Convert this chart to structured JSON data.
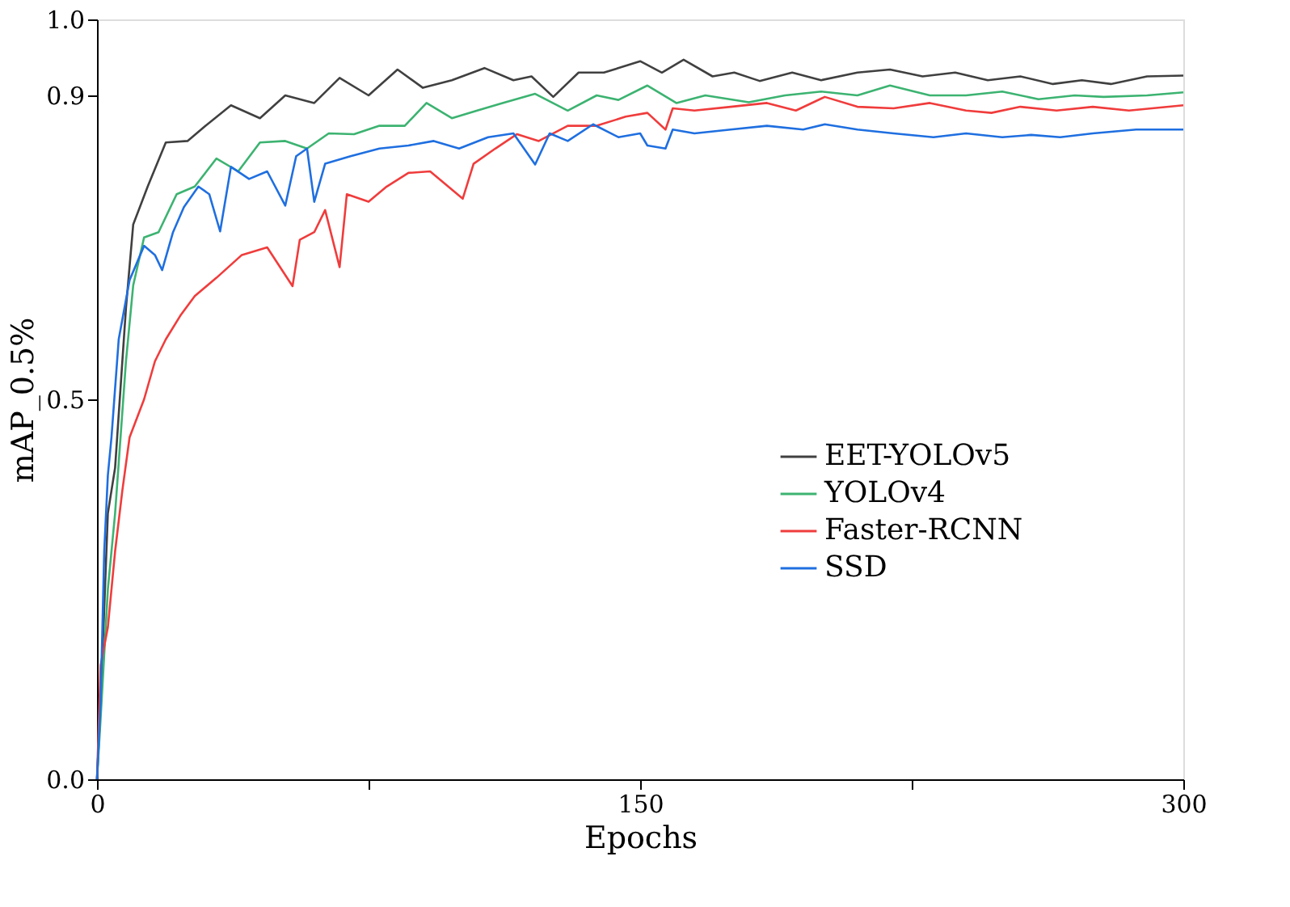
{
  "chart_data": {
    "type": "line",
    "xlabel": "Epochs",
    "ylabel": "mAP_0.5%",
    "xlim": [
      0,
      300
    ],
    "ylim": [
      0,
      1.0
    ],
    "xticks": [
      0,
      {
        "value": 75,
        "label": null
      },
      150,
      {
        "value": 225,
        "label": null
      },
      300
    ],
    "yticks": [
      {
        "value": 0,
        "label": "0.0"
      },
      0.5,
      0.9,
      {
        "value": 1,
        "label": "1.0"
      }
    ],
    "grid": false,
    "legend": "right",
    "marker": "none",
    "line_style": "solid",
    "series": [
      {
        "name": "EET-YOLOv5",
        "color": "#404040",
        "x": [
          0,
          1,
          3,
          5,
          8,
          10,
          14,
          19,
          25,
          30,
          37,
          45,
          52,
          60,
          67,
          75,
          83,
          90,
          98,
          107,
          115,
          120,
          126,
          133,
          140,
          150,
          156,
          162,
          170,
          176,
          183,
          192,
          200,
          210,
          219,
          228,
          237,
          246,
          255,
          264,
          272,
          280,
          290,
          300
        ],
        "values": [
          0,
          0.1,
          0.35,
          0.41,
          0.62,
          0.73,
          0.78,
          0.838,
          0.84,
          0.86,
          0.887,
          0.87,
          0.9,
          0.89,
          0.923,
          0.9,
          0.934,
          0.91,
          0.92,
          0.936,
          0.92,
          0.925,
          0.898,
          0.93,
          0.93,
          0.945,
          0.93,
          0.947,
          0.925,
          0.93,
          0.919,
          0.93,
          0.92,
          0.93,
          0.934,
          0.925,
          0.93,
          0.92,
          0.925,
          0.915,
          0.92,
          0.915,
          0.925,
          0.926
        ]
      },
      {
        "name": "YOLOv4",
        "color": "#3cb371",
        "x": [
          0,
          1,
          3,
          5,
          8,
          10,
          13,
          17,
          22,
          27,
          33,
          39,
          45,
          52,
          58,
          64,
          71,
          78,
          85,
          91,
          98,
          105,
          112,
          121,
          130,
          138,
          144,
          152,
          160,
          168,
          180,
          190,
          200,
          210,
          219,
          230,
          240,
          250,
          260,
          270,
          278,
          290,
          300
        ],
        "values": [
          0,
          0.08,
          0.25,
          0.35,
          0.55,
          0.65,
          0.713,
          0.72,
          0.77,
          0.78,
          0.817,
          0.8,
          0.838,
          0.84,
          0.83,
          0.85,
          0.849,
          0.86,
          0.86,
          0.89,
          0.87,
          0.88,
          0.89,
          0.902,
          0.88,
          0.9,
          0.894,
          0.913,
          0.89,
          0.9,
          0.891,
          0.9,
          0.905,
          0.9,
          0.913,
          0.9,
          0.9,
          0.905,
          0.895,
          0.9,
          0.898,
          0.9,
          0.904
        ]
      },
      {
        "name": "Faster-RCNN",
        "color": "#f03c3c",
        "x": [
          0,
          1,
          3,
          5,
          7,
          9,
          13,
          16,
          19,
          23,
          27,
          33,
          40,
          47,
          54,
          56,
          60,
          63,
          67,
          69,
          75,
          80,
          86,
          92,
          101,
          104,
          110,
          116,
          122,
          130,
          138,
          146,
          152,
          157,
          159,
          165,
          175,
          185,
          193,
          201,
          210,
          220,
          230,
          240,
          247,
          255,
          265,
          275,
          285,
          300
        ],
        "values": [
          0,
          0.15,
          0.2,
          0.3,
          0.38,
          0.45,
          0.5,
          0.55,
          0.579,
          0.61,
          0.636,
          0.66,
          0.69,
          0.7,
          0.649,
          0.71,
          0.72,
          0.749,
          0.674,
          0.77,
          0.76,
          0.78,
          0.798,
          0.8,
          0.764,
          0.81,
          0.83,
          0.849,
          0.84,
          0.86,
          0.86,
          0.872,
          0.877,
          0.855,
          0.883,
          0.88,
          0.885,
          0.89,
          0.88,
          0.898,
          0.885,
          0.883,
          0.89,
          0.88,
          0.877,
          0.885,
          0.88,
          0.885,
          0.88,
          0.887
        ]
      },
      {
        "name": "SSD",
        "color": "#1f6fe0",
        "x": [
          0,
          1,
          2,
          3,
          4,
          6,
          9,
          13,
          16,
          18,
          21,
          24,
          28,
          31,
          34,
          37,
          42,
          47,
          52,
          55,
          58,
          60,
          63,
          70,
          78,
          86,
          93,
          100,
          108,
          115,
          121,
          125,
          130,
          137,
          144,
          150,
          152,
          157,
          159,
          165,
          175,
          185,
          195,
          201,
          210,
          220,
          231,
          240,
          250,
          258,
          266,
          275,
          287,
          300
        ],
        "values": [
          0,
          0.1,
          0.3,
          0.4,
          0.45,
          0.579,
          0.657,
          0.702,
          0.69,
          0.67,
          0.72,
          0.753,
          0.78,
          0.77,
          0.721,
          0.806,
          0.79,
          0.8,
          0.755,
          0.82,
          0.83,
          0.76,
          0.81,
          0.82,
          0.83,
          0.834,
          0.84,
          0.83,
          0.845,
          0.85,
          0.809,
          0.85,
          0.84,
          0.862,
          0.845,
          0.85,
          0.834,
          0.83,
          0.855,
          0.85,
          0.855,
          0.86,
          0.855,
          0.862,
          0.855,
          0.85,
          0.845,
          0.85,
          0.845,
          0.848,
          0.845,
          0.85,
          0.855,
          0.855
        ]
      }
    ]
  }
}
